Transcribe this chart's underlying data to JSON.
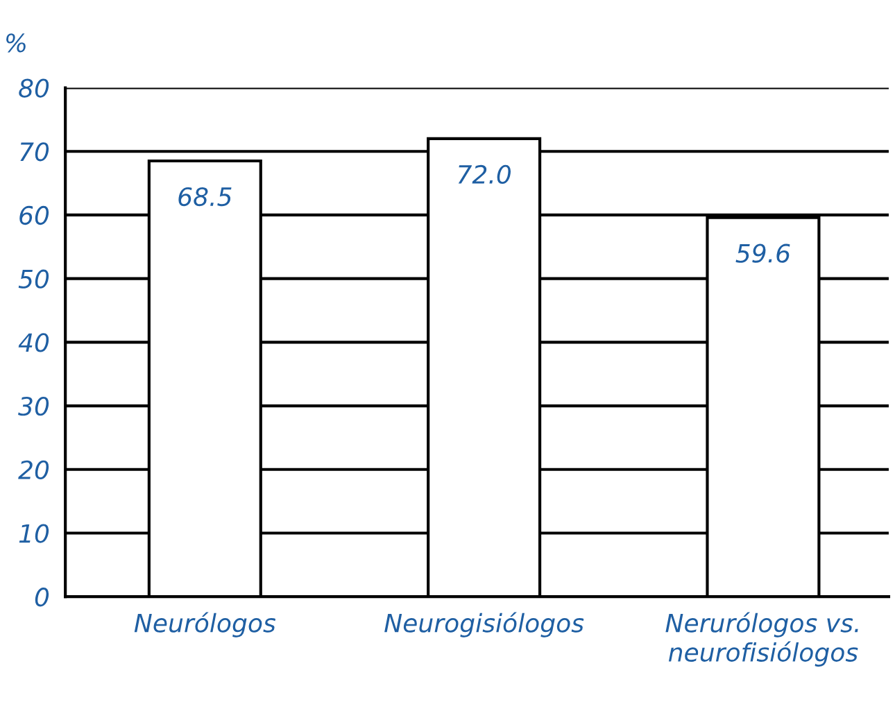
{
  "chart_data": {
    "type": "bar",
    "ylabel": "%",
    "categories": [
      "Neurólogos",
      "Neurogisiólogos",
      "Nerurólogos vs.\nneurofisiólogos"
    ],
    "values": [
      68.5,
      72.0,
      59.6
    ],
    "value_labels": [
      "68.5",
      "72.0",
      "59.6"
    ],
    "color": "#ffffff",
    "ylim": [
      0,
      80
    ],
    "yticks": [
      0,
      10,
      20,
      30,
      40,
      50,
      60,
      70,
      80
    ],
    "grid": "y"
  }
}
